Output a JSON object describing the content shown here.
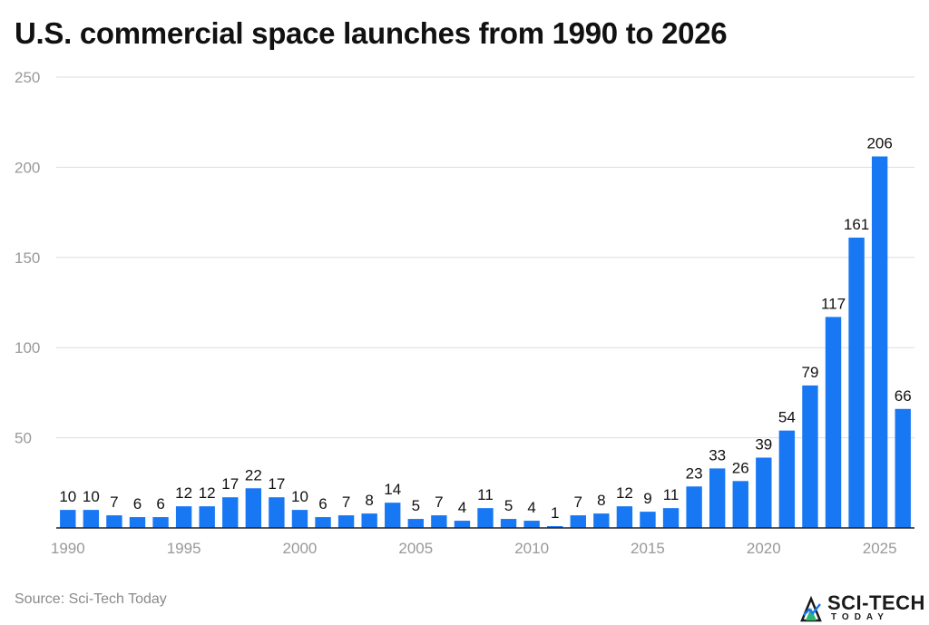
{
  "title": "U.S. commercial space launches from 1990 to 2026",
  "source": "Source: Sci-Tech Today",
  "logo": {
    "brand": "SCI-TECH",
    "sub": "TODAY"
  },
  "colors": {
    "bar": "#1878f3",
    "grid": "#dddddd",
    "axis": "#222222",
    "tick_text": "#999999",
    "label_text": "#111111"
  },
  "chart_data": {
    "type": "bar",
    "title": "U.S. commercial space launches from 1990 to 2026",
    "xlabel": "",
    "ylabel": "",
    "ylim": [
      0,
      250
    ],
    "yticks": [
      50,
      100,
      150,
      200,
      250
    ],
    "grid": true,
    "categories": [
      1990,
      1991,
      1992,
      1993,
      1994,
      1995,
      1996,
      1997,
      1998,
      1999,
      2000,
      2001,
      2002,
      2003,
      2004,
      2005,
      2006,
      2007,
      2008,
      2009,
      2010,
      2011,
      2012,
      2013,
      2014,
      2015,
      2016,
      2017,
      2018,
      2019,
      2020,
      2021,
      2022,
      2023,
      2024,
      2025,
      2026
    ],
    "xtick_labels": [
      "1990",
      "1995",
      "2000",
      "2005",
      "2010",
      "2015",
      "2020",
      "2025"
    ],
    "values": [
      10,
      10,
      7,
      6,
      6,
      12,
      12,
      17,
      22,
      17,
      10,
      6,
      7,
      8,
      14,
      5,
      7,
      4,
      11,
      5,
      4,
      1,
      7,
      8,
      12,
      9,
      11,
      23,
      33,
      26,
      39,
      54,
      79,
      117,
      161,
      206,
      66
    ]
  }
}
